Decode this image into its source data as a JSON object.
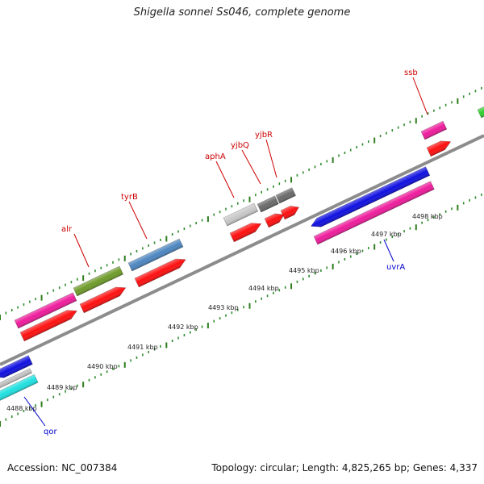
{
  "title": "Shigella sonnei Ss046, complete genome",
  "footer": {
    "accession": "Accession: NC_007384",
    "summary": "Topology: circular; Length: 4,825,265 bp; Genes: 4,337"
  },
  "colors": {
    "backbone": "#8c8c8c",
    "tick_major": "#2e7d1e",
    "tick_minor": "#2e8b2e",
    "label_forward": "#cc0000",
    "label_reverse": "#0000cc",
    "cds_red": "#ff1010",
    "magenta": "#ee1c9c",
    "olive": "#6e9b2a",
    "steelblue": "#4d86c0",
    "lightgray": "#c8c8c8",
    "darkgray": "#6a6a6a",
    "blue": "#1010e0",
    "cyan": "#20e0e0",
    "green": "#30d030"
  },
  "ticks": [
    {
      "label": "4488 kbp"
    },
    {
      "label": "4489 kbp"
    },
    {
      "label": "4490 kbp"
    },
    {
      "label": "4491 kbp"
    },
    {
      "label": "4492 kbp"
    },
    {
      "label": "4493 kbp"
    },
    {
      "label": "4494 kbp"
    },
    {
      "label": "4495 kbp"
    },
    {
      "label": "4496 kbp"
    },
    {
      "label": "4497 kbp"
    },
    {
      "label": "4498 kbp"
    }
  ],
  "gene_labels": [
    {
      "name": "alr",
      "strand": "forward"
    },
    {
      "name": "tyrB",
      "strand": "forward"
    },
    {
      "name": "aphA",
      "strand": "forward"
    },
    {
      "name": "yjbQ",
      "strand": "forward"
    },
    {
      "name": "yjbR",
      "strand": "forward"
    },
    {
      "name": "ssb",
      "strand": "forward"
    },
    {
      "name": "uvrA",
      "strand": "reverse"
    },
    {
      "name": "qor",
      "strand": "reverse"
    }
  ]
}
